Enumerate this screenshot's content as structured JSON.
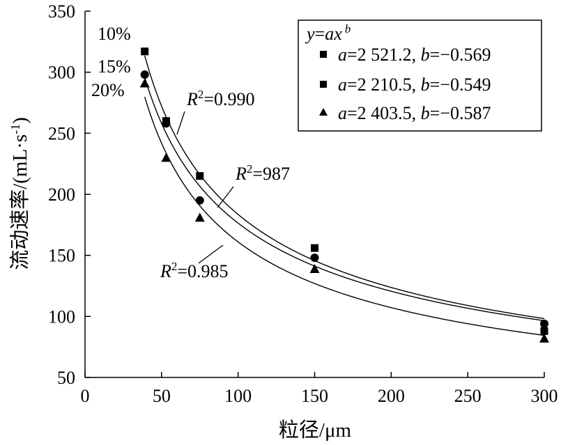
{
  "chart_data": {
    "type": "scatter",
    "xlabel": "粒径/μm",
    "ylabel": "流动速率/(mL·s⁻¹)",
    "xlim": [
      0,
      300
    ],
    "ylim": [
      50,
      350
    ],
    "xticks": [
      "0",
      "50",
      "100",
      "150",
      "200",
      "250",
      "300"
    ],
    "yticks": [
      "50",
      "100",
      "150",
      "200",
      "250",
      "300",
      "350"
    ],
    "grid": false,
    "legend": {
      "position": "top-right",
      "title": "y=ax^b",
      "entries": [
        "a=2 521.2, b=−0.569",
        "a=2 210.5, b=−0.549",
        "a=2 403.5, b=−0.587"
      ]
    },
    "annotations": [
      "10%",
      "15%",
      "20%",
      "R²=0.990",
      "R²=987",
      "R²=0.985"
    ],
    "series": [
      {
        "label": "10%",
        "marker": "square",
        "x": [
          39,
          53,
          75,
          150,
          300
        ],
        "y": [
          317,
          260,
          215,
          156,
          88
        ],
        "fit": {
          "a": 2521.2,
          "b": -0.569
        }
      },
      {
        "label": "15%",
        "marker": "circle",
        "x": [
          39,
          53,
          75,
          150,
          300
        ],
        "y": [
          298,
          258,
          195,
          148,
          94
        ],
        "fit": {
          "a": 2210.5,
          "b": -0.549
        }
      },
      {
        "label": "20%",
        "marker": "triangle",
        "x": [
          39,
          53,
          75,
          150,
          300
        ],
        "y": [
          291,
          230,
          181,
          139,
          82
        ],
        "fit": {
          "a": 2403.5,
          "b": -0.587
        }
      }
    ]
  },
  "text": {
    "xlabel": "粒径/μm",
    "ylabel": "流动速率/(mL·s",
    "ylabel_sup": "-1",
    "ylabel_close": ")",
    "series_label_1": "10%",
    "series_label_2": "15%",
    "series_label_3": "20%",
    "r2_prefix": "R",
    "r2_sup": "2",
    "r2_1": "=0.990",
    "r2_2": "=987",
    "r2_3": "=0.985",
    "legend_title_y": "y",
    "legend_title_eq": "=",
    "legend_title_ax": "ax",
    "legend_title_b": "b",
    "legend_a": "a",
    "legend_b": "b",
    "legend_1_a": "=2 521.2, ",
    "legend_1_b": "=−0.569",
    "legend_2_a": "=2 210.5, ",
    "legend_2_b": "=−0.549",
    "legend_3_a": "=2 403.5, ",
    "legend_3_b": "=−0.587"
  }
}
